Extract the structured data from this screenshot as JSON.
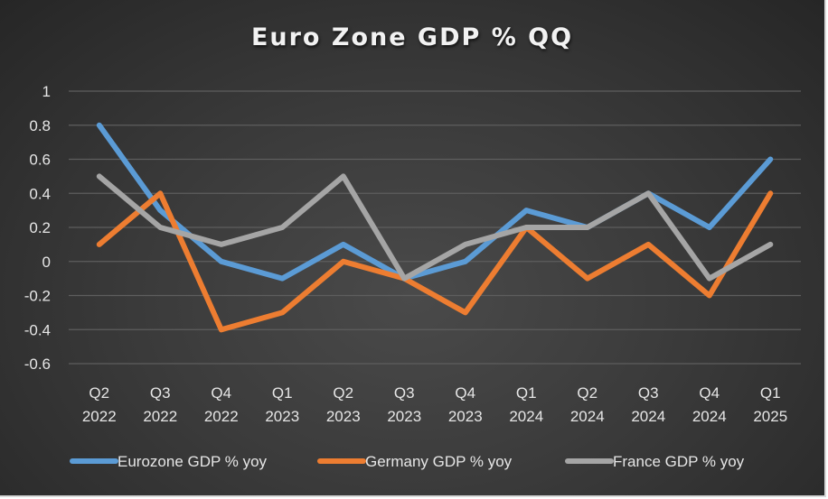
{
  "chart_data": {
    "type": "line",
    "title": "Euro Zone GDP % QQ",
    "xlabel": "",
    "ylabel": "",
    "ylim": [
      -0.6,
      1
    ],
    "yticks": [
      "1",
      "0.8",
      "0.6",
      "0.4",
      "0.2",
      "0",
      "-0.2",
      "-0.4",
      "-0.6"
    ],
    "ytick_values": [
      1,
      0.8,
      0.6,
      0.4,
      0.2,
      0,
      -0.2,
      -0.4,
      -0.6
    ],
    "grid": true,
    "legend_position": "bottom",
    "categories": [
      [
        "Q2",
        "2022"
      ],
      [
        "Q3",
        "2022"
      ],
      [
        "Q4",
        "2022"
      ],
      [
        "Q1",
        "2023"
      ],
      [
        "Q2",
        "2023"
      ],
      [
        "Q3",
        "2023"
      ],
      [
        "Q4",
        "2023"
      ],
      [
        "Q1",
        "2024"
      ],
      [
        "Q2",
        "2024"
      ],
      [
        "Q3",
        "2024"
      ],
      [
        "Q4",
        "2024"
      ],
      [
        "Q1",
        "2025"
      ]
    ],
    "series": [
      {
        "name": "Eurozone GDP % yoy",
        "color": "#5b9bd5",
        "values": [
          0.8,
          0.3,
          0.0,
          -0.1,
          0.1,
          -0.1,
          0.0,
          0.3,
          0.2,
          0.4,
          0.2,
          0.6
        ]
      },
      {
        "name": "Germany GDP % yoy",
        "color": "#ed7d31",
        "values": [
          0.1,
          0.4,
          -0.4,
          -0.3,
          0.0,
          -0.1,
          -0.3,
          0.2,
          -0.1,
          0.1,
          -0.2,
          0.4
        ]
      },
      {
        "name": "France GDP % yoy",
        "color": "#a5a5a5",
        "values": [
          0.5,
          0.2,
          0.1,
          0.2,
          0.5,
          -0.1,
          0.1,
          0.2,
          0.2,
          0.4,
          -0.1,
          0.1
        ]
      }
    ]
  }
}
